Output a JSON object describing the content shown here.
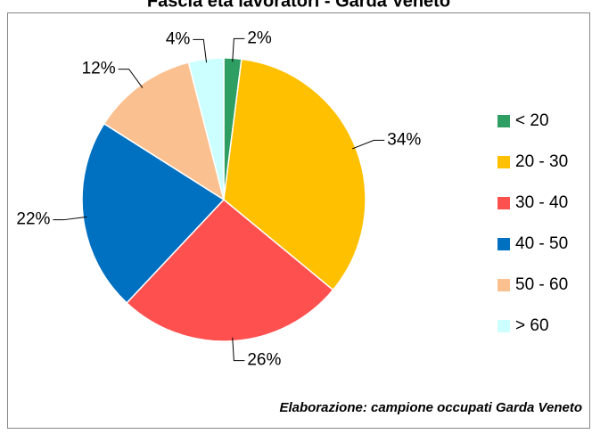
{
  "chart_data": {
    "type": "pie",
    "title": "Fascia età lavoratori - Garda Veneto",
    "categories": [
      "< 20",
      "20 - 30",
      "30 - 40",
      "40 - 50",
      "50 - 60",
      "> 60"
    ],
    "values": [
      2,
      34,
      26,
      22,
      12,
      4
    ],
    "value_labels": [
      "2%",
      "34%",
      "26%",
      "22%",
      "12%",
      "4%"
    ],
    "colors": [
      "#2f9e62",
      "#ffc000",
      "#ff5050",
      "#0070c0",
      "#fac090",
      "#ccffff"
    ],
    "legend": "right",
    "annotation": "Elaborazione: campione occupati Garda Veneto"
  }
}
